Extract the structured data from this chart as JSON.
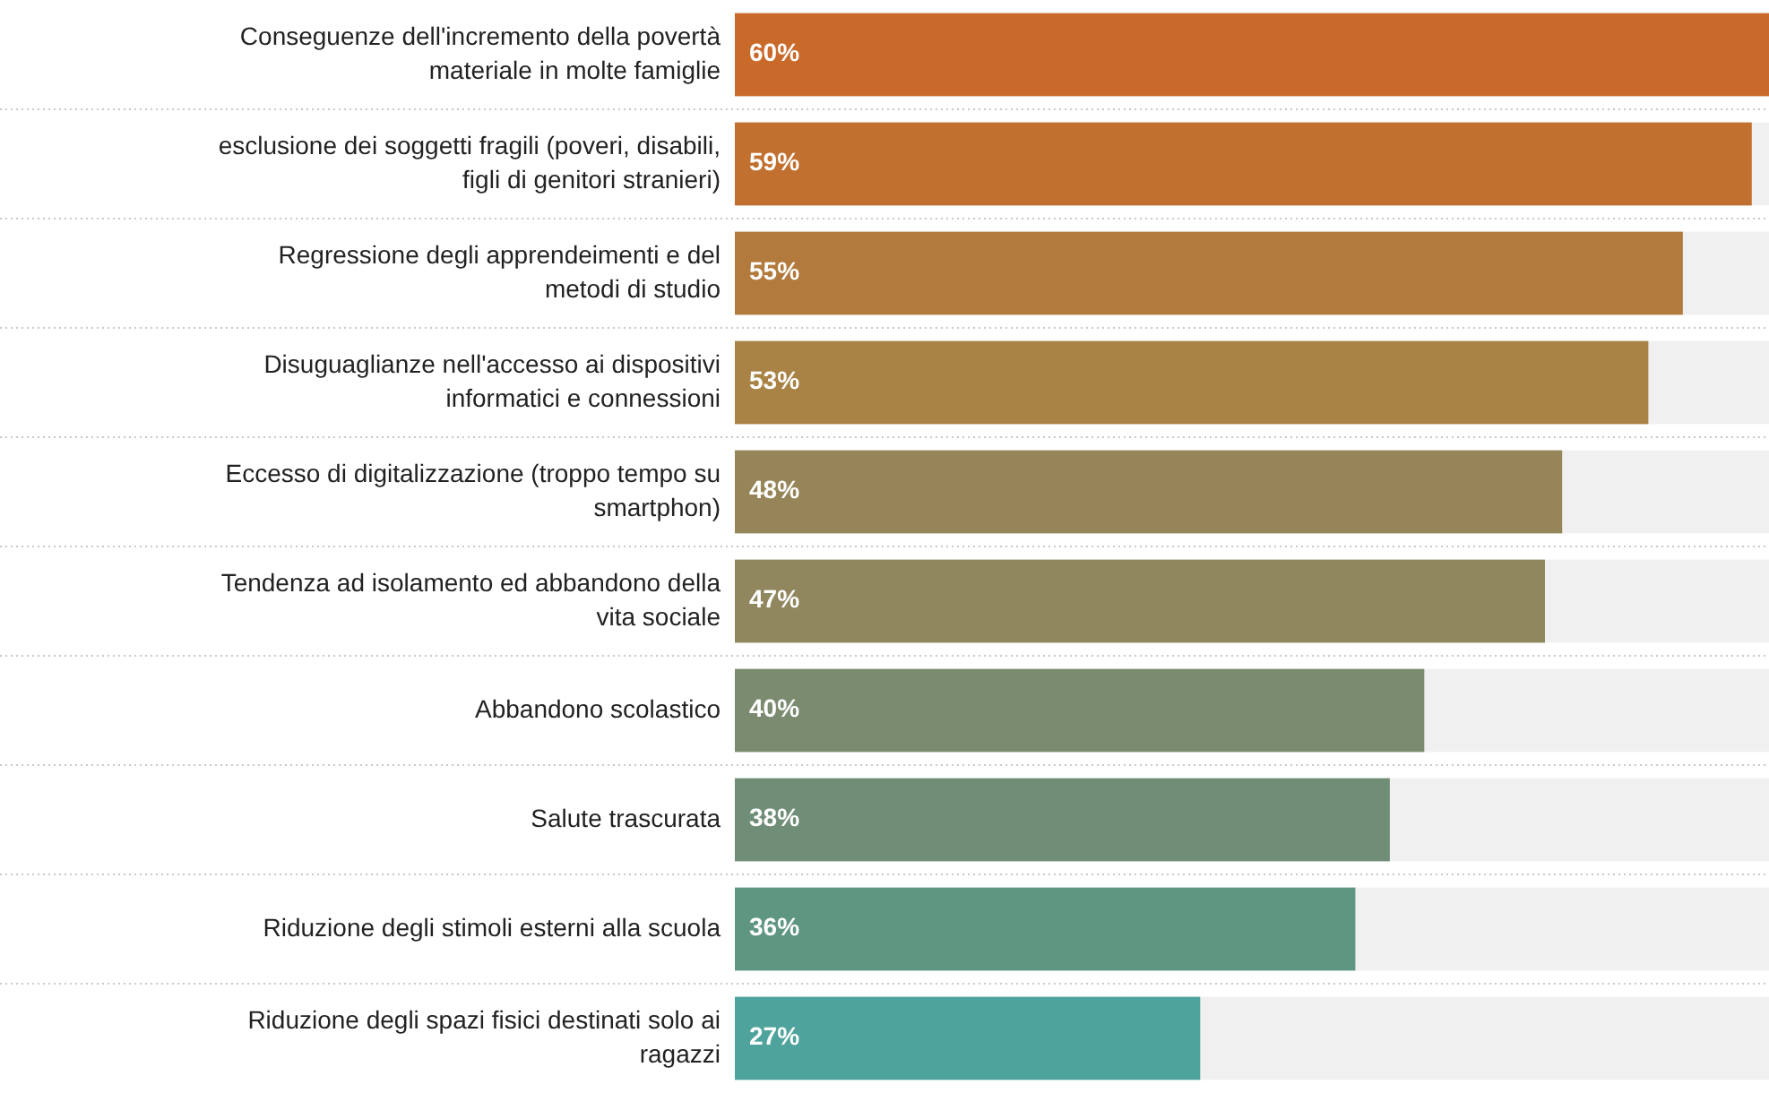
{
  "chart_data": {
    "type": "bar",
    "orientation": "horizontal",
    "categories": [
      "Conseguenze dell'incremento della povertà\nmateriale in molte famiglie",
      "esclusione dei soggetti fragili (poveri, disabili,\nfigli di genitori stranieri)",
      "Regressione degli apprendeimenti e del\nmetodi di studio",
      "Disuguaglianze nell'accesso ai dispositivi\ninformatici e connessioni",
      "Eccesso di digitalizzazione (troppo tempo su\nsmartphon)",
      "Tendenza ad isolamento ed abbandono della\nvita sociale",
      "Abbandono scolastico",
      "Salute trascurata",
      "Riduzione degli stimoli esterni alla scuola",
      "Riduzione degli spazi fisici destinati solo ai\nragazzi"
    ],
    "values": [
      60,
      59,
      55,
      53,
      48,
      47,
      40,
      38,
      36,
      27
    ],
    "value_labels": [
      "60%",
      "59%",
      "55%",
      "53%",
      "48%",
      "47%",
      "40%",
      "38%",
      "36%",
      "27%"
    ],
    "colors": [
      "#c96a2b",
      "#c2702f",
      "#b27a3c",
      "#a98245",
      "#968559",
      "#90875e",
      "#7b8b70",
      "#708e77",
      "#5f9682",
      "#4ea39c"
    ]
  }
}
